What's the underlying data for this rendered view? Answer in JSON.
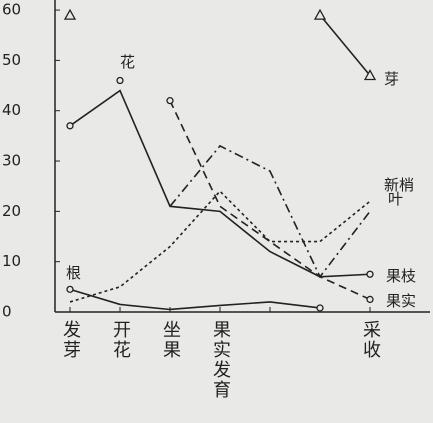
{
  "chart_data": {
    "type": "line",
    "categories": [
      "发芽",
      "开花",
      "坐果",
      "果实发育",
      null,
      null,
      "采收"
    ],
    "x": [
      0,
      1,
      2,
      3,
      4,
      5,
      6
    ],
    "xlim": [
      -0.3,
      6.8
    ],
    "ylim": [
      0,
      62
    ],
    "yticks": [
      0,
      10,
      20,
      30,
      40,
      50,
      60
    ],
    "series": [
      {
        "name": "芽",
        "color": "#222222",
        "style": "solid",
        "marker": "triangle",
        "values": [
          59,
          null,
          null,
          null,
          null,
          59,
          47
        ]
      },
      {
        "name": "花",
        "color": "#222222",
        "style": "solid",
        "marker": "circle",
        "values": [
          null,
          46,
          null,
          null,
          null,
          null,
          null
        ]
      },
      {
        "name": "果枝",
        "color": "#222222",
        "style": "solid",
        "marker": "circle",
        "values": [
          37,
          44,
          21,
          20,
          12,
          7,
          7.5
        ]
      },
      {
        "name": "果实",
        "color": "#222222",
        "style": "dashed",
        "marker": "circle",
        "values": [
          null,
          null,
          42,
          21,
          14,
          7,
          2.5
        ]
      },
      {
        "name": "新梢",
        "color": "#222222",
        "style": "dashdot",
        "marker": "none",
        "values": [
          null,
          null,
          21,
          33,
          28,
          7,
          20
        ]
      },
      {
        "name": "叶",
        "color": "#222222",
        "style": "dotted",
        "marker": "none",
        "values": [
          2,
          5,
          13,
          24,
          14,
          14,
          22
        ]
      },
      {
        "name": "根",
        "color": "#222222",
        "style": "solid",
        "marker": "circle",
        "values": [
          4.5,
          1.5,
          0.5,
          1.3,
          2,
          0.8,
          null
        ]
      }
    ]
  }
}
